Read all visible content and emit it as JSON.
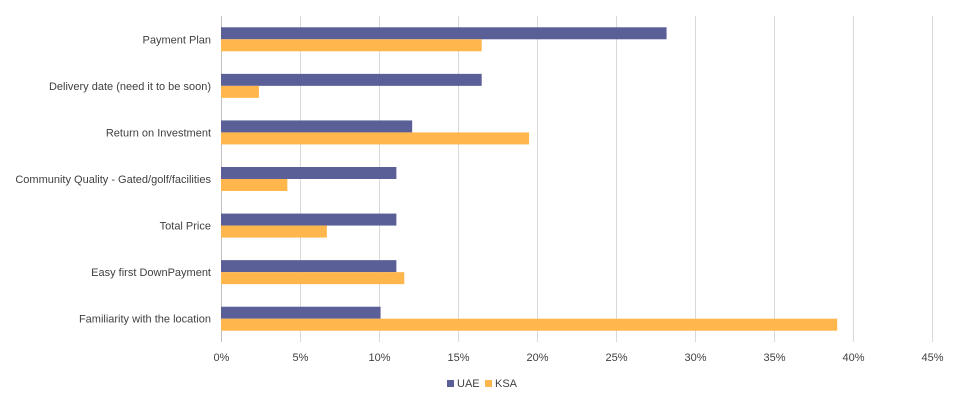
{
  "chart_data": {
    "type": "bar",
    "orientation": "horizontal",
    "categories": [
      "Payment Plan",
      "Delivery date (need it to be soon)",
      "Return on Investment",
      "Community Quality - Gated/golf/facilities",
      "Total Price",
      "Easy first DownPayment",
      "Familiarity with the location"
    ],
    "series": [
      {
        "name": "UAE",
        "color": "#5b5f97",
        "values": [
          28.2,
          16.5,
          12.1,
          11.1,
          11.1,
          11.1,
          10.1
        ]
      },
      {
        "name": "KSA",
        "color": "#ffb74d",
        "values": [
          16.5,
          2.4,
          19.5,
          4.2,
          6.7,
          11.6,
          39.0
        ]
      }
    ],
    "xlim": [
      0,
      45
    ],
    "xticks": [
      0,
      5,
      10,
      15,
      20,
      25,
      30,
      35,
      40,
      45
    ],
    "tick_format": "percent",
    "grid": true,
    "legend": "bottom-center",
    "title": "",
    "xlabel": "",
    "ylabel": ""
  }
}
